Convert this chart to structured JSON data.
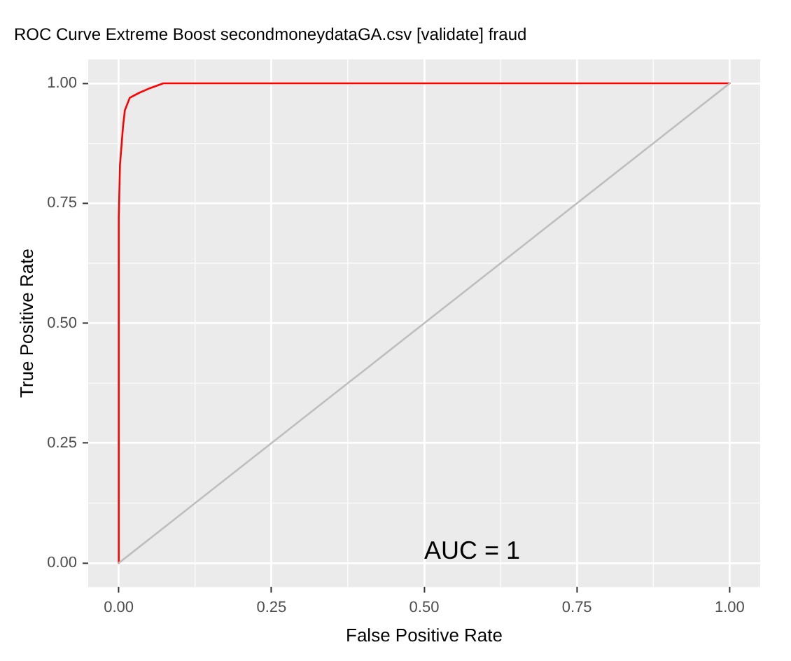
{
  "chart_data": {
    "type": "line",
    "title": "ROC Curve Extreme Boost secondmoneydataGA.csv [validate] fraud",
    "xlabel": "False Positive Rate",
    "ylabel": "True Positive Rate",
    "series": [
      {
        "color": "#ff0000",
        "x": [
          0,
          0,
          0.002,
          0.007,
          0.01,
          0.018,
          0.033,
          0.051,
          0.073,
          1
        ],
        "values": [
          0,
          0.72,
          0.83,
          0.91,
          0.944,
          0.97,
          0.98,
          0.99,
          1,
          1
        ]
      },
      {
        "color": "#bebebe",
        "x": [
          0,
          1
        ],
        "values": [
          0,
          1
        ]
      }
    ],
    "xlim": [
      -0.05,
      1.05
    ],
    "ylim": [
      -0.05,
      1.05
    ],
    "xticks": [
      {
        "value": 0,
        "label": "0.00"
      },
      {
        "value": 0.25,
        "label": "0.25"
      },
      {
        "value": 0.5,
        "label": "0.50"
      },
      {
        "value": 0.75,
        "label": "0.75"
      },
      {
        "value": 1,
        "label": "1.00"
      }
    ],
    "yticks": [
      {
        "value": 0,
        "label": "0.00"
      },
      {
        "value": 0.25,
        "label": "0.25"
      },
      {
        "value": 0.5,
        "label": "0.50"
      },
      {
        "value": 0.75,
        "label": "0.75"
      },
      {
        "value": 1,
        "label": "1.00"
      }
    ],
    "annotations": [
      "AUC = 1"
    ],
    "grid": true,
    "marker": "none"
  }
}
